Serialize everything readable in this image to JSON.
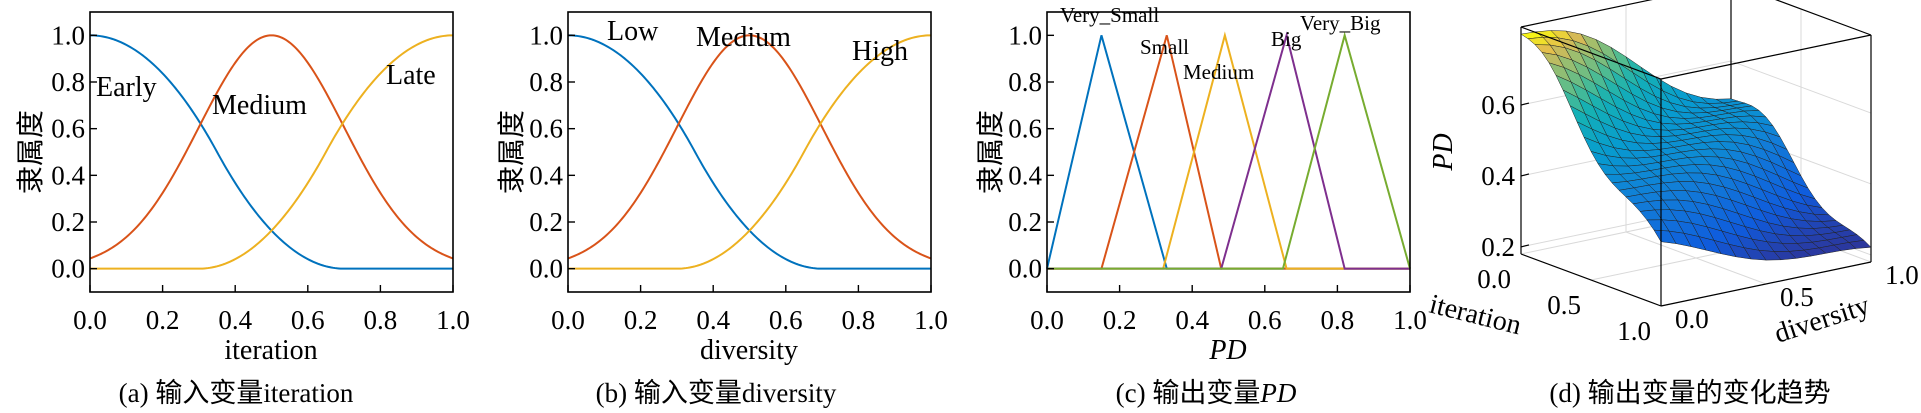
{
  "colors": {
    "blue": "#0072BD",
    "orange": "#D95319",
    "yellow": "#EDB120",
    "purple": "#7E2F8E",
    "green": "#77AC30"
  },
  "chart_data": [
    {
      "type": "line",
      "ylabel": "隶属度",
      "xlabel": "iteration",
      "caption": "(a) 输入变量iteration",
      "xlim": [
        0,
        1
      ],
      "ylim": [
        -0.1,
        1.1
      ],
      "xticks": [
        "0.0",
        "0.2",
        "0.4",
        "0.6",
        "0.8",
        "1.0"
      ],
      "yticks": [
        "0.0",
        "0.2",
        "0.4",
        "0.6",
        "0.8",
        "1.0"
      ],
      "series": [
        {
          "name": "Early",
          "shape": "z-shaped",
          "params": [
            0.0,
            0.7
          ],
          "color": "#0072BD"
        },
        {
          "name": "Medium",
          "shape": "gaussian",
          "params": [
            0.5,
            0.2
          ],
          "color": "#D95319"
        },
        {
          "name": "Late",
          "shape": "s-shaped",
          "params": [
            0.3,
            1.0
          ],
          "color": "#EDB120"
        }
      ]
    },
    {
      "type": "line",
      "ylabel": "隶属度",
      "xlabel": "diversity",
      "caption": "(b) 输入变量diversity",
      "xlim": [
        0,
        1
      ],
      "ylim": [
        -0.1,
        1.1
      ],
      "xticks": [
        "0.0",
        "0.2",
        "0.4",
        "0.6",
        "0.8",
        "1.0"
      ],
      "yticks": [
        "0.0",
        "0.2",
        "0.4",
        "0.6",
        "0.8",
        "1.0"
      ],
      "series": [
        {
          "name": "Low",
          "shape": "z-shaped",
          "params": [
            0.0,
            0.7
          ],
          "color": "#0072BD"
        },
        {
          "name": "Medium",
          "shape": "gaussian",
          "params": [
            0.5,
            0.2
          ],
          "color": "#D95319"
        },
        {
          "name": "High",
          "shape": "s-shaped",
          "params": [
            0.3,
            1.0
          ],
          "color": "#EDB120"
        }
      ]
    },
    {
      "type": "line",
      "ylabel": "隶属度",
      "xlabel": "PD",
      "caption_prefix": "(c) 输出变量",
      "caption_var": "PD",
      "xlim": [
        0,
        1
      ],
      "ylim": [
        -0.1,
        1.1
      ],
      "xticks": [
        "0.0",
        "0.2",
        "0.4",
        "0.6",
        "0.8",
        "1.0"
      ],
      "yticks": [
        "0.0",
        "0.2",
        "0.4",
        "0.6",
        "0.8",
        "1.0"
      ],
      "series": [
        {
          "name": "Very_Small",
          "shape": "triangle",
          "params": [
            0.0,
            0.15,
            0.33
          ],
          "color": "#0072BD"
        },
        {
          "name": "Small",
          "shape": "triangle",
          "params": [
            0.15,
            0.33,
            0.48
          ],
          "color": "#D95319"
        },
        {
          "name": "Medium",
          "shape": "triangle",
          "params": [
            0.32,
            0.49,
            0.66
          ],
          "color": "#EDB120"
        },
        {
          "name": "Big",
          "shape": "triangle",
          "params": [
            0.48,
            0.66,
            0.82
          ],
          "color": "#7E2F8E"
        },
        {
          "name": "Very_Big",
          "shape": "triangle",
          "params": [
            0.65,
            0.82,
            1.0
          ],
          "color": "#77AC30"
        }
      ]
    },
    {
      "type": "surface",
      "caption": "(d) 输出变量的变化趋势",
      "xlabel": "iteration",
      "ylabel": "diversity",
      "zlabel": "PD",
      "x_ticks": [
        "0.0",
        "0.5",
        "1.0"
      ],
      "y_ticks": [
        "0.0",
        "0.5",
        "1.0"
      ],
      "z_ticks": [
        "0.2",
        "0.4",
        "0.6"
      ],
      "zlim": [
        0.18,
        0.82
      ],
      "corner_values": {
        "iter0_div0": 0.8,
        "iter1_div0": 0.34,
        "iter0_div1": 0.52,
        "iter1_div1": 0.2
      },
      "colormap": "parula"
    }
  ]
}
